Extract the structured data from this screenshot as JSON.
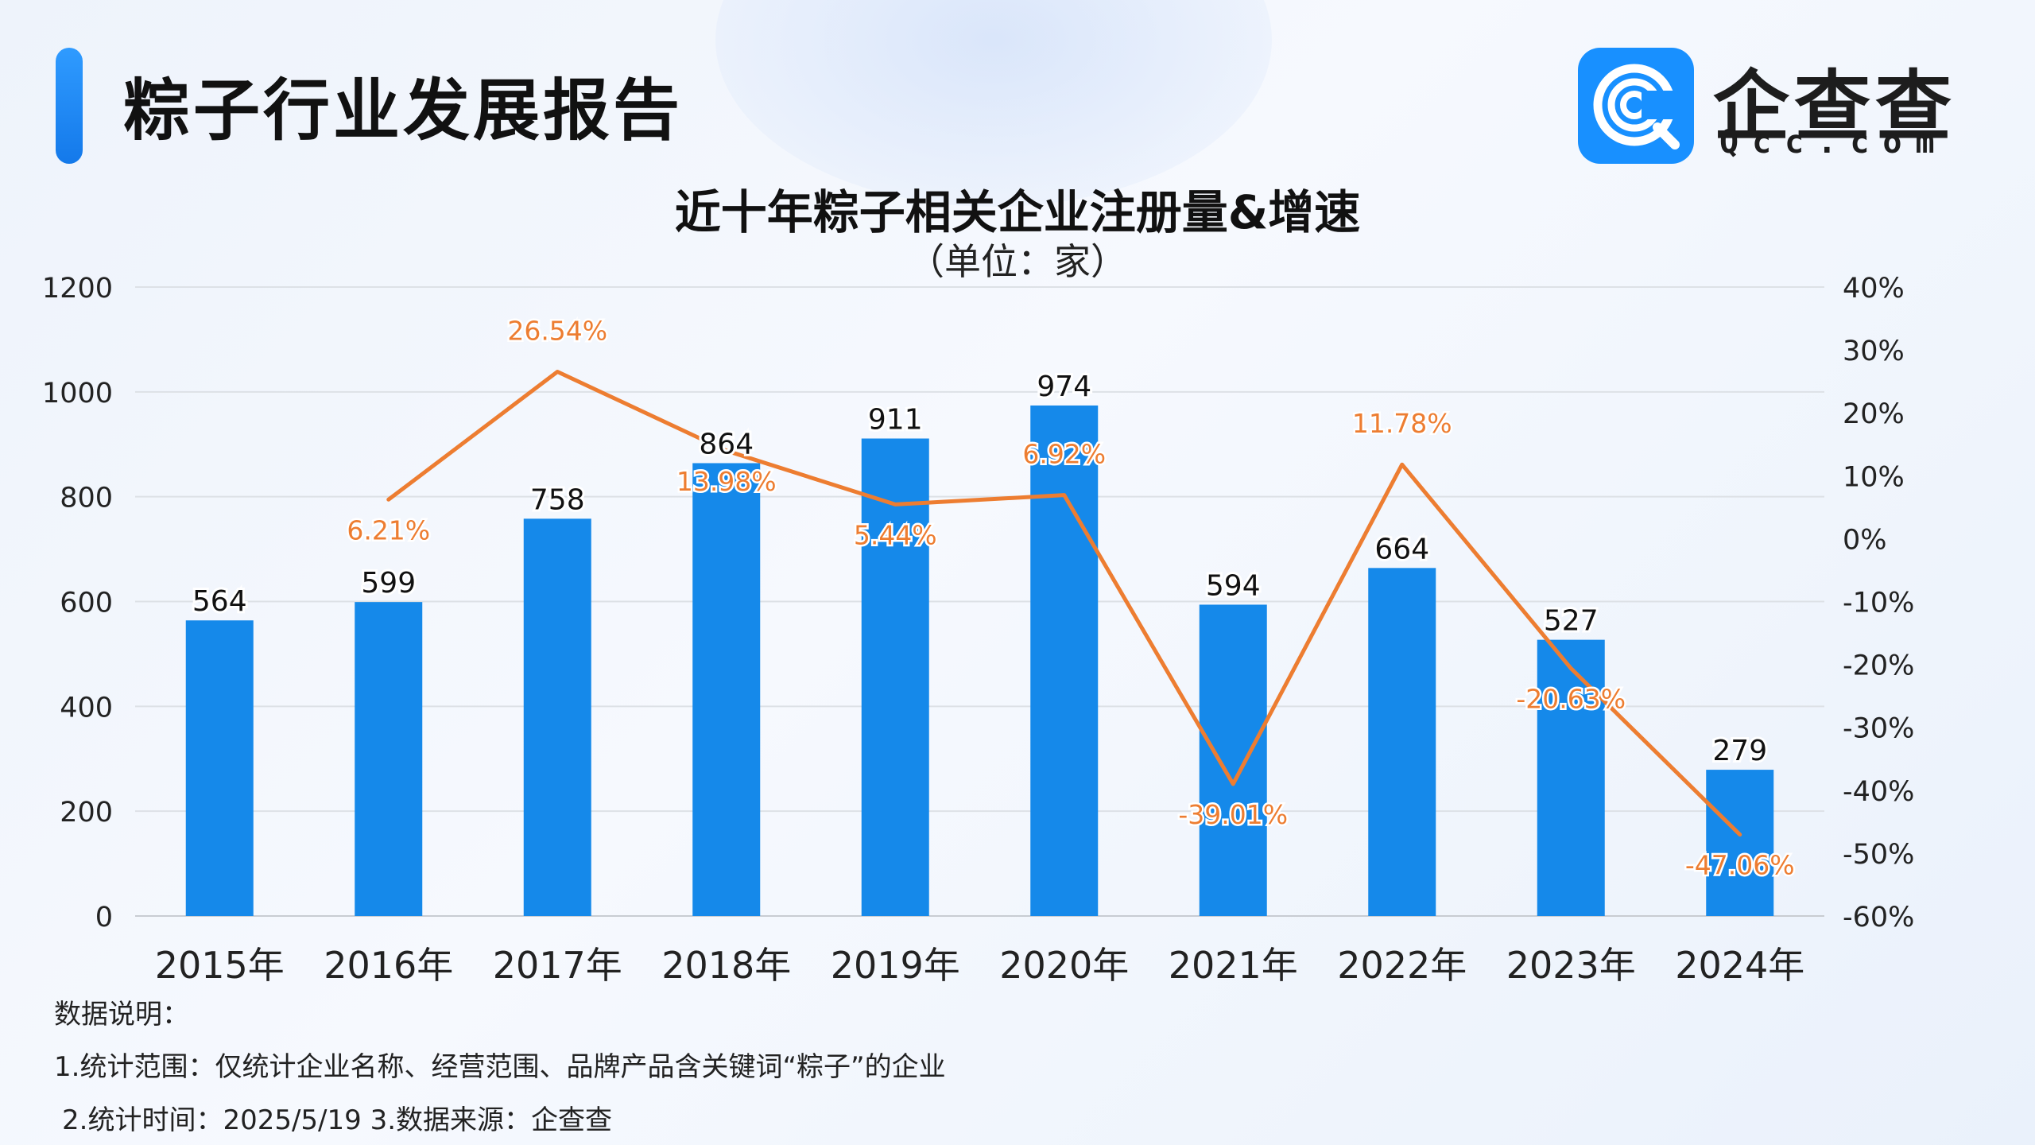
{
  "header": {
    "report_title": "粽子行业发展报告",
    "logo_name": "企查查",
    "logo_domain": "Qcc.com"
  },
  "chart_data": {
    "type": "bar",
    "title": "近十年粽子相关企业注册量&增速",
    "subtitle": "（单位：家）",
    "categories": [
      "2015年",
      "2016年",
      "2017年",
      "2018年",
      "2019年",
      "2020年",
      "2021年",
      "2022年",
      "2023年",
      "2024年"
    ],
    "series": [
      {
        "type": "bar",
        "axis": "left",
        "values": [
          564,
          599,
          758,
          864,
          911,
          974,
          594,
          664,
          527,
          279
        ],
        "labels": [
          "564",
          "599",
          "758",
          "864",
          "911",
          "974",
          "594",
          "664",
          "527",
          "279"
        ],
        "color": "#1589ea"
      },
      {
        "type": "line",
        "axis": "right",
        "values": [
          null,
          6.21,
          26.54,
          13.98,
          5.44,
          6.92,
          -39.01,
          11.78,
          -20.63,
          -47.06
        ],
        "labels": [
          "",
          "6.21%",
          "26.54%",
          "13.98%",
          "5.44%",
          "6.92%",
          "-39.01%",
          "11.78%",
          "-20.63%",
          "-47.06%"
        ],
        "color": "#ed7d31"
      }
    ],
    "y_left": {
      "range": [
        0,
        1200
      ],
      "ticks": [
        "0",
        "200",
        "400",
        "600",
        "800",
        "1000",
        "1200"
      ]
    },
    "y_right": {
      "range": [
        -60,
        40
      ],
      "ticks": [
        "-60%",
        "-50%",
        "-40%",
        "-30%",
        "-20%",
        "-10%",
        "0%",
        "10%",
        "20%",
        "30%",
        "40%"
      ]
    },
    "grid": true,
    "legend": "none"
  },
  "notes": {
    "heading": "数据说明：",
    "line1": "1.统计范围：仅统计企业名称、经营范围、品牌产品含关键词“粽子”的企业",
    "line2": "2.统计时间：2025/5/19 3.数据来源：企查查"
  }
}
